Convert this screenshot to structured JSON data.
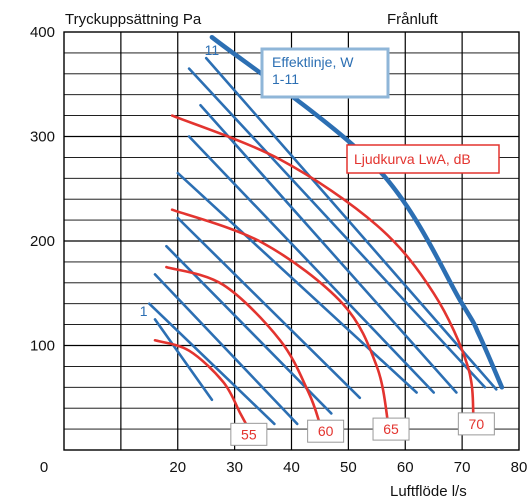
{
  "chart_data": {
    "type": "line",
    "title": "Tryckuppsättning Pa",
    "title_right": "Frånluft",
    "xlabel": "Luftflöde l/s",
    "ylabel": "",
    "xlim": [
      0,
      80
    ],
    "ylim": [
      0,
      400
    ],
    "x_ticks": [
      "0",
      "20",
      "30",
      "40",
      "50",
      "60",
      "70",
      "80"
    ],
    "y_ticks": [
      "100",
      "200",
      "300",
      "400"
    ],
    "grid": true,
    "legend_blue": {
      "line1": "Effektlinje, W",
      "line2": "1-11"
    },
    "legend_red": "Ljudkurva  LwA, dB",
    "blue_lines": [
      {
        "name": "1",
        "points": [
          [
            16,
            125
          ],
          [
            26,
            48
          ]
        ]
      },
      {
        "name": "2",
        "points": [
          [
            15,
            140
          ],
          [
            37,
            25
          ]
        ]
      },
      {
        "name": "3",
        "points": [
          [
            16,
            168
          ],
          [
            41,
            25
          ]
        ]
      },
      {
        "name": "4",
        "points": [
          [
            18,
            195
          ],
          [
            47,
            35
          ]
        ]
      },
      {
        "name": "5",
        "points": [
          [
            20,
            222
          ],
          [
            52,
            50
          ]
        ]
      },
      {
        "name": "6",
        "points": [
          [
            20,
            265
          ],
          [
            62,
            55
          ]
        ]
      },
      {
        "name": "7",
        "points": [
          [
            22,
            300
          ],
          [
            65,
            55
          ]
        ]
      },
      {
        "name": "8",
        "points": [
          [
            24,
            330
          ],
          [
            69,
            55
          ]
        ]
      },
      {
        "name": "9",
        "points": [
          [
            22,
            365
          ],
          [
            74,
            60
          ]
        ]
      },
      {
        "name": "10",
        "points": [
          [
            25,
            375
          ],
          [
            76,
            58
          ]
        ]
      },
      {
        "name": "11",
        "points": [
          [
            26,
            395
          ],
          [
            55,
            270
          ],
          [
            70,
            140
          ],
          [
            73,
            110
          ],
          [
            77,
            60
          ]
        ]
      }
    ],
    "blue_line_labels": [
      {
        "text": "1",
        "x": 14,
        "y": 128
      },
      {
        "text": "11",
        "x": 26,
        "y": 378
      }
    ],
    "red_curves": [
      {
        "name": "55",
        "points": [
          [
            16,
            105
          ],
          [
            22,
            95
          ],
          [
            28,
            65
          ],
          [
            31,
            35
          ],
          [
            32,
            25
          ]
        ]
      },
      {
        "name": "60",
        "points": [
          [
            18,
            175
          ],
          [
            28,
            158
          ],
          [
            38,
            105
          ],
          [
            43,
            55
          ],
          [
            45,
            25
          ]
        ]
      },
      {
        "name": "65",
        "points": [
          [
            19,
            230
          ],
          [
            35,
            198
          ],
          [
            49,
            140
          ],
          [
            55,
            80
          ],
          [
            57,
            25
          ]
        ]
      },
      {
        "name": "70",
        "points": [
          [
            19,
            320
          ],
          [
            38,
            278
          ],
          [
            55,
            215
          ],
          [
            65,
            150
          ],
          [
            71,
            80
          ],
          [
            72,
            30
          ]
        ]
      }
    ],
    "red_labels": [
      {
        "text": "55",
        "x": 32.5,
        "y": 15
      },
      {
        "text": "60",
        "x": 46,
        "y": 18
      },
      {
        "text": "65",
        "x": 57.5,
        "y": 20
      },
      {
        "text": "70",
        "x": 72.5,
        "y": 25
      }
    ],
    "colors": {
      "blue": "#2c6fb3",
      "red": "#e3342f",
      "grid": "#000000"
    }
  }
}
